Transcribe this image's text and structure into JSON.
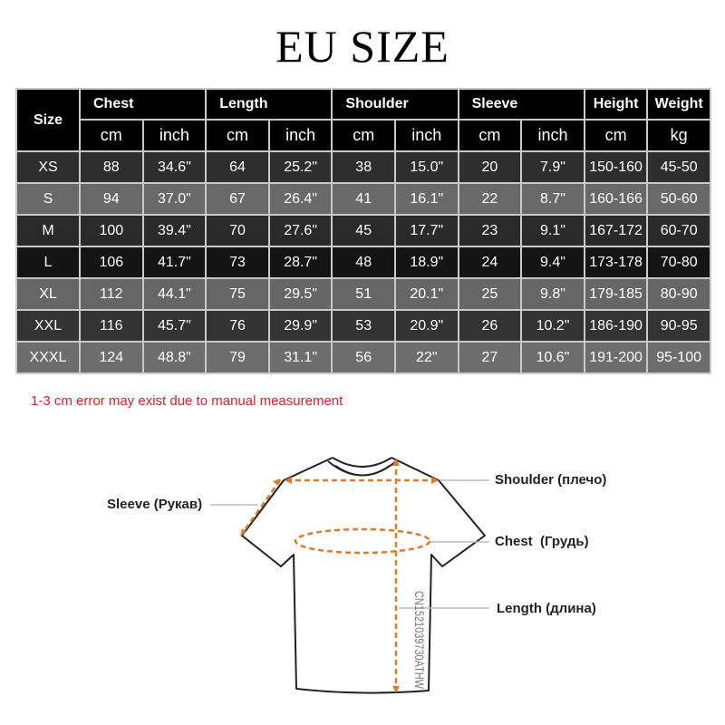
{
  "title": "EU SIZE",
  "table": {
    "size_header": "Size",
    "groups": [
      "Chest",
      "Length",
      "Shoulder",
      "Sleeve",
      "Height",
      "Weight"
    ],
    "units": [
      "cm",
      "inch",
      "cm",
      "inch",
      "cm",
      "inch",
      "cm",
      "inch",
      "cm",
      "kg"
    ],
    "rows": [
      {
        "size": "XS",
        "values": [
          "88",
          "34.6\"",
          "64",
          "25.2\"",
          "38",
          "15.0\"",
          "20",
          "7.9\"",
          "150-160",
          "45-50"
        ],
        "bg": "#2e2e2e"
      },
      {
        "size": "S",
        "values": [
          "94",
          "37.0\"",
          "67",
          "26.4\"",
          "41",
          "16.1\"",
          "22",
          "8.7\"",
          "160-166",
          "50-60"
        ],
        "bg": "#696969"
      },
      {
        "size": "M",
        "values": [
          "100",
          "39.4\"",
          "70",
          "27.6\"",
          "45",
          "17.7\"",
          "23",
          "9.1\"",
          "167-172",
          "60-70"
        ],
        "bg": "#2a2a2a"
      },
      {
        "size": "L",
        "values": [
          "106",
          "41.7\"",
          "73",
          "28.7\"",
          "48",
          "18.9\"",
          "24",
          "9.4\"",
          "173-178",
          "70-80"
        ],
        "bg": "#141414"
      },
      {
        "size": "XL",
        "values": [
          "112",
          "44.1\"",
          "75",
          "29.5\"",
          "51",
          "20.1\"",
          "25",
          "9.8\"",
          "179-185",
          "80-90"
        ],
        "bg": "#666666"
      },
      {
        "size": "XXL",
        "values": [
          "116",
          "45.7\"",
          "76",
          "29.9\"",
          "53",
          "20.9\"",
          "26",
          "10.2\"",
          "186-190",
          "90-95"
        ],
        "bg": "#333333"
      },
      {
        "size": "XXXL",
        "values": [
          "124",
          "48.8\"",
          "79",
          "31.1\"",
          "56",
          "22\"",
          "27",
          "10.6\"",
          "191-200",
          "95-100"
        ],
        "bg": "#6d6d6d"
      }
    ]
  },
  "note": "1-3 cm error may exist due to manual measurement",
  "note_color": "#e02020",
  "diagram": {
    "labels": {
      "sleeve": "Sleeve (Рукав)",
      "shoulder": "Shoulder (плечо)",
      "chest": "Chest  (Грудь)",
      "length": "Length (длина)"
    },
    "watermark": "CN1521039730ATHW",
    "measure_color": "#e07a2a"
  }
}
